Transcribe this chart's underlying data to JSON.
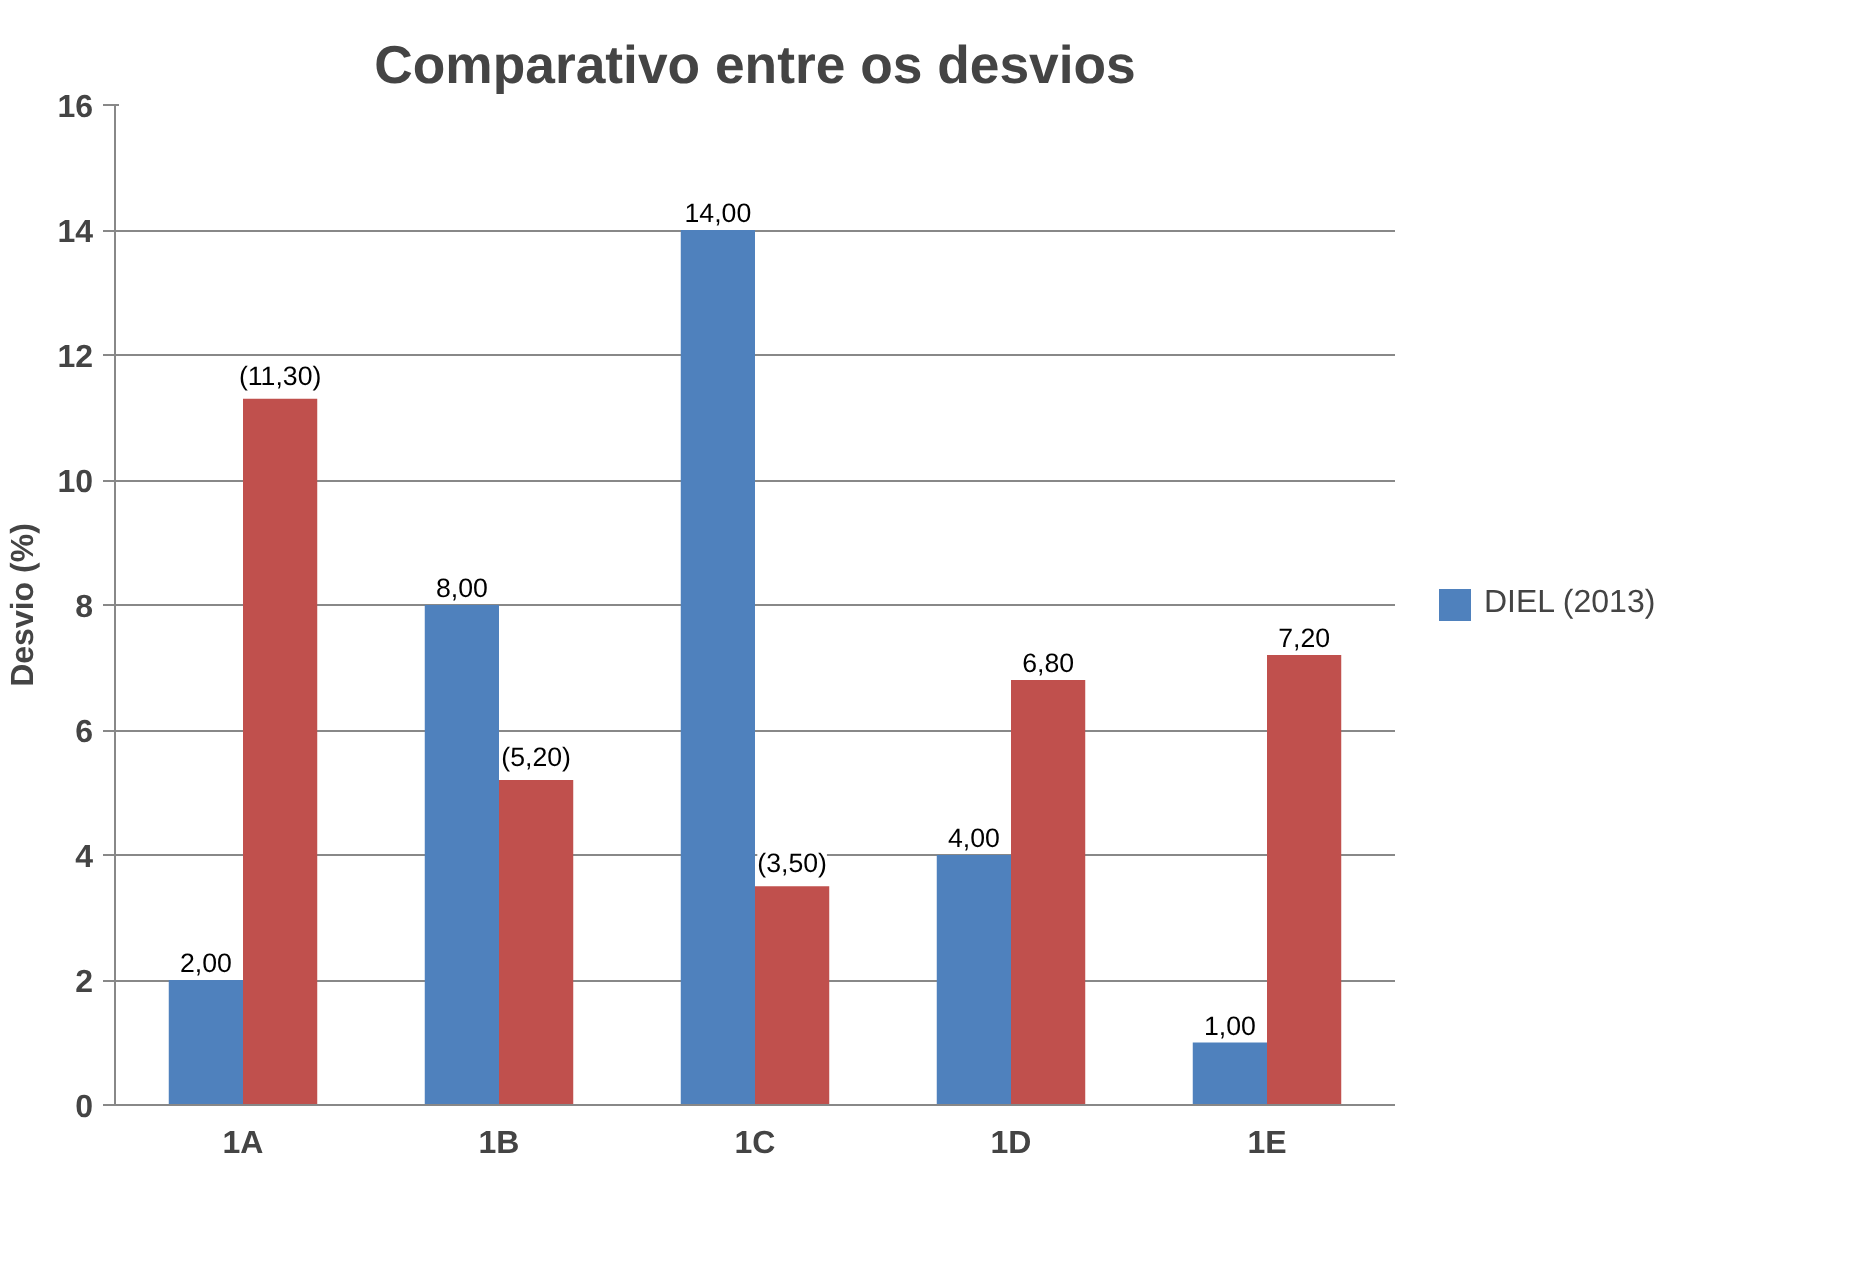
{
  "chart_data": {
    "type": "bar",
    "title": "Comparativo entre os desvios",
    "ylabel": "Desvio (%)",
    "categories": [
      "1A",
      "1B",
      "1C",
      "1D",
      "1E"
    ],
    "series": [
      {
        "name": "DIEL (2013)",
        "color": "#4f81bd",
        "values": [
          2,
          8,
          14,
          4,
          1
        ],
        "value_labels": [
          "2,00",
          "8,00",
          "14,00",
          "4,00",
          "1,00"
        ]
      },
      {
        "color": "#c0504d",
        "values": [
          11.3,
          5.2,
          3.5,
          6.8,
          7.2
        ],
        "value_labels": [
          "(11,30)",
          "(5,20)",
          "(3,50)",
          "6,80",
          "7,20"
        ]
      }
    ],
    "ylim": [
      0,
      16
    ],
    "yticks": [
      0,
      2,
      4,
      6,
      8,
      10,
      12,
      14,
      16
    ],
    "grid": "y",
    "legend": "right"
  }
}
